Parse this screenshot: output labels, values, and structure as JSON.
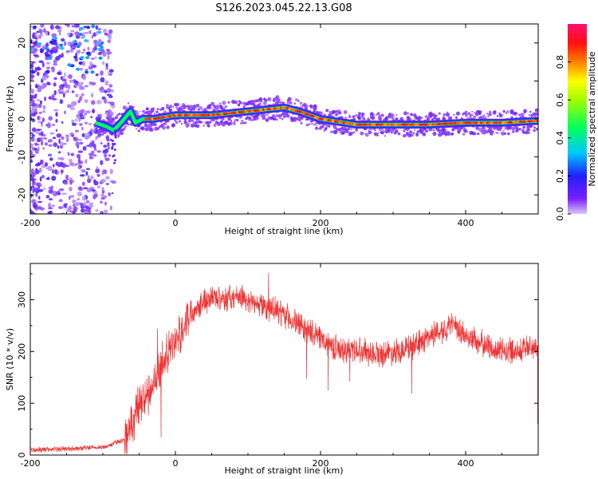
{
  "title": "S126.2023.045.22.13.G08",
  "chart_data": [
    {
      "type": "heatmap",
      "xlabel": "Height of straight line (km)",
      "ylabel": "Frequency (Hz)",
      "xlim": [
        -200,
        500
      ],
      "ylim": [
        -25,
        25
      ],
      "xticks": [
        -200,
        0,
        200,
        400
      ],
      "yticks": [
        -20,
        -10,
        0,
        10,
        20
      ],
      "colorbar": {
        "label": "Normalized spectral amplitude",
        "range": [
          0,
          1
        ],
        "ticks": [
          "0.0",
          "0.2",
          "0.4",
          "0.6",
          "0.8"
        ],
        "tick_values": [
          0,
          0.2,
          0.4,
          0.6,
          0.8
        ],
        "colormap": "rainbow (violet to red)"
      },
      "ridge": {
        "x": [
          -110,
          -95,
          -85,
          -75,
          -62,
          -55,
          -45,
          -30,
          0,
          50,
          100,
          150,
          170,
          200,
          250,
          300,
          350,
          400,
          450,
          500
        ],
        "frequency": [
          -1,
          -2,
          -3,
          -1,
          2,
          -1,
          0,
          0,
          1,
          1,
          2,
          3,
          2,
          0,
          -1.5,
          -1.5,
          -1.5,
          -1,
          -1,
          -0.5
        ]
      }
    },
    {
      "type": "line",
      "xlabel": "Height of straight line (km)",
      "ylabel": "SNR (10 * v/v)",
      "xlim": [
        -200,
        500
      ],
      "ylim": [
        0,
        370
      ],
      "xticks": [
        -200,
        0,
        200,
        400
      ],
      "yticks": [
        0,
        100,
        200,
        300
      ],
      "color": "#ee3333",
      "series": [
        {
          "x": [
            -200,
            -150,
            -100,
            -70,
            -60,
            -50,
            -40,
            -30,
            -20,
            -10,
            0,
            20,
            40,
            60,
            100,
            150,
            200,
            230,
            250,
            280,
            300,
            330,
            350,
            380,
            400,
            430,
            450,
            480,
            500
          ],
          "values": [
            10,
            12,
            15,
            30,
            60,
            100,
            110,
            140,
            170,
            200,
            215,
            275,
            300,
            305,
            300,
            270,
            225,
            200,
            205,
            195,
            200,
            210,
            230,
            250,
            230,
            210,
            200,
            205,
            210
          ]
        }
      ]
    }
  ]
}
